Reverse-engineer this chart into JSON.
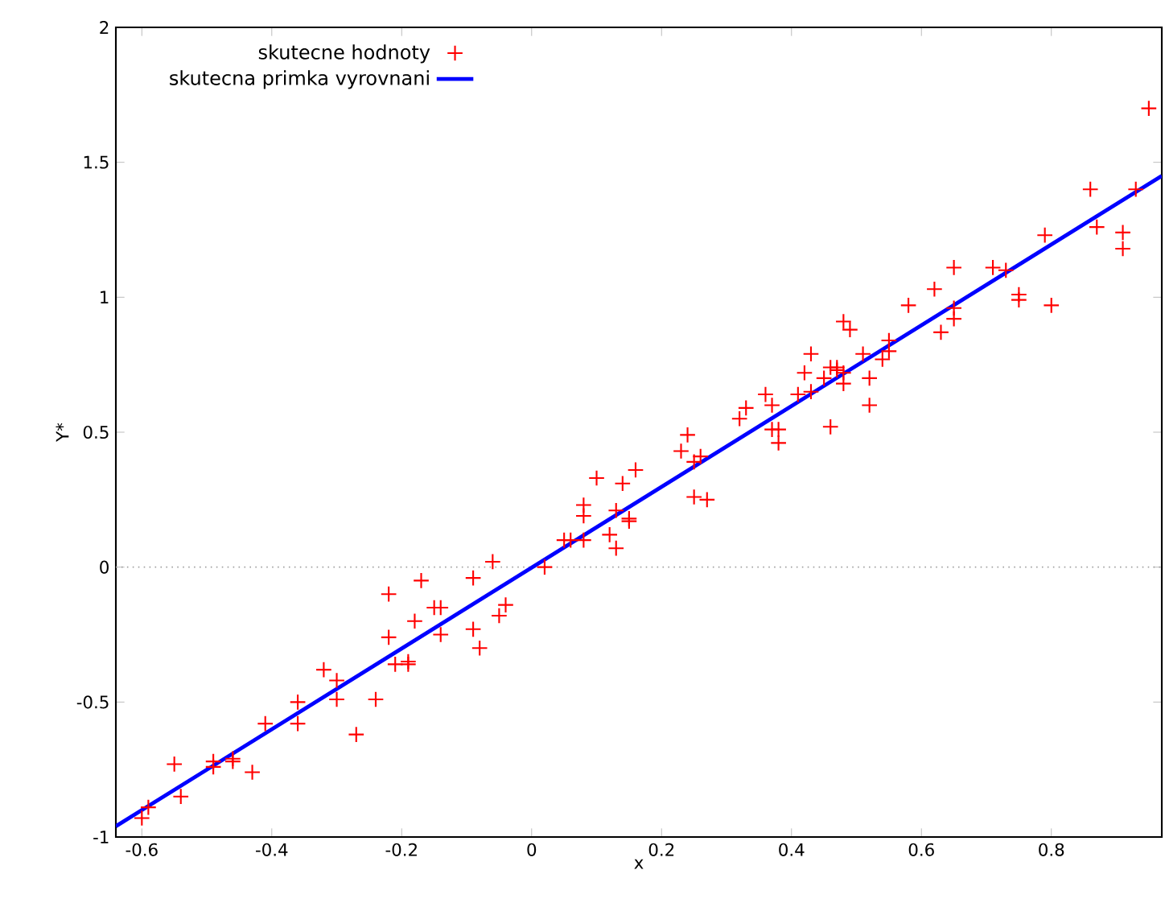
{
  "chart_data": {
    "type": "scatter",
    "xlabel": "x",
    "ylabel": "Y*",
    "xlim": [
      -0.64,
      0.97
    ],
    "ylim": [
      -1,
      2
    ],
    "xticks": [
      -0.6,
      -0.4,
      -0.2,
      0,
      0.2,
      0.4,
      0.6,
      0.8
    ],
    "yticks": [
      -1,
      -0.5,
      0,
      0.5,
      1,
      1.5,
      2
    ],
    "grid": false,
    "legend": "top left",
    "ref_lines": [
      {
        "axis": "y",
        "value": 0,
        "color": "#a0a0a0",
        "line_style": "dotted"
      }
    ],
    "series": [
      {
        "name": "skutecne hodnoty",
        "marker": "cross",
        "color": "#ff0000",
        "x": [
          -0.6,
          -0.59,
          -0.55,
          -0.54,
          -0.49,
          -0.49,
          -0.46,
          -0.46,
          -0.43,
          -0.41,
          -0.36,
          -0.36,
          -0.32,
          -0.3,
          -0.3,
          -0.27,
          -0.24,
          -0.22,
          -0.22,
          -0.21,
          -0.19,
          -0.19,
          -0.18,
          -0.17,
          -0.15,
          -0.14,
          -0.14,
          -0.09,
          -0.09,
          -0.08,
          -0.06,
          -0.05,
          -0.04,
          0.02,
          0.05,
          0.06,
          0.08,
          0.08,
          0.08,
          0.1,
          0.12,
          0.13,
          0.13,
          0.14,
          0.15,
          0.15,
          0.16,
          0.23,
          0.24,
          0.25,
          0.25,
          0.26,
          0.27,
          0.32,
          0.33,
          0.36,
          0.37,
          0.37,
          0.38,
          0.38,
          0.41,
          0.42,
          0.43,
          0.43,
          0.45,
          0.46,
          0.46,
          0.47,
          0.47,
          0.48,
          0.48,
          0.48,
          0.49,
          0.51,
          0.52,
          0.52,
          0.54,
          0.55,
          0.55,
          0.58,
          0.62,
          0.63,
          0.65,
          0.65,
          0.65,
          0.71,
          0.73,
          0.75,
          0.75,
          0.79,
          0.8,
          0.86,
          0.87,
          0.91,
          0.91,
          0.93,
          0.95
        ],
        "values": [
          -0.93,
          -0.89,
          -0.73,
          -0.85,
          -0.72,
          -0.74,
          -0.71,
          -0.72,
          -0.76,
          -0.58,
          -0.5,
          -0.58,
          -0.38,
          -0.42,
          -0.49,
          -0.62,
          -0.49,
          -0.26,
          -0.1,
          -0.36,
          -0.35,
          -0.36,
          -0.2,
          -0.05,
          -0.15,
          -0.15,
          -0.25,
          -0.04,
          -0.23,
          -0.3,
          0.02,
          -0.18,
          -0.14,
          0.0,
          0.1,
          0.1,
          0.1,
          0.19,
          0.23,
          0.33,
          0.12,
          0.07,
          0.21,
          0.31,
          0.18,
          0.17,
          0.36,
          0.43,
          0.49,
          0.39,
          0.26,
          0.41,
          0.25,
          0.55,
          0.59,
          0.64,
          0.6,
          0.51,
          0.51,
          0.46,
          0.64,
          0.72,
          0.79,
          0.65,
          0.7,
          0.52,
          0.74,
          0.74,
          0.73,
          0.68,
          0.72,
          0.91,
          0.88,
          0.79,
          0.7,
          0.6,
          0.77,
          0.84,
          0.8,
          0.97,
          1.03,
          0.87,
          1.11,
          0.92,
          0.96,
          1.11,
          1.1,
          1.01,
          0.99,
          1.23,
          0.97,
          1.4,
          1.26,
          1.24,
          1.18,
          1.4,
          1.7
        ]
      },
      {
        "name": "skutecna primka vyrovnani",
        "type": "line",
        "marker": "none",
        "line_style": "solid",
        "color": "#0000ff",
        "x": [
          -0.64,
          0.97
        ],
        "values": [
          -0.96,
          1.45
        ]
      }
    ]
  }
}
